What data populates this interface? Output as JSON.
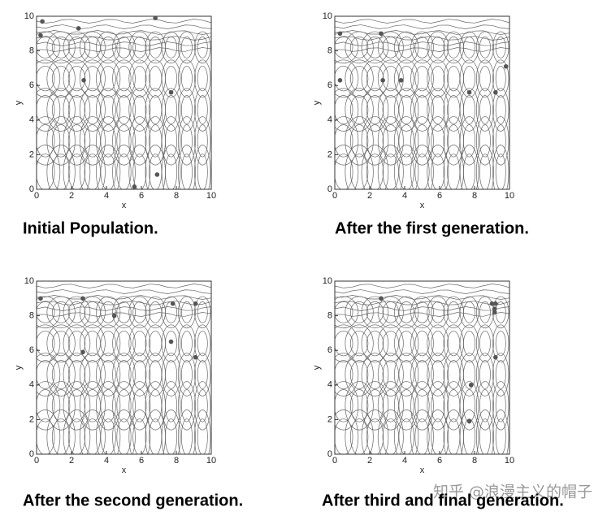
{
  "chart_data": [
    {
      "type": "scatter",
      "title": "Initial Population.",
      "x_label": "x",
      "y_label": "y",
      "x": [
        0.33,
        0.23,
        2.4,
        6.8,
        2.7,
        7.7,
        6.9,
        5.6
      ],
      "y": [
        9.7,
        8.9,
        9.3,
        9.9,
        6.3,
        5.6,
        0.85,
        0.15
      ],
      "xlim": [
        0,
        10
      ],
      "ylim": [
        0,
        10
      ],
      "xticks": [
        0,
        2,
        4,
        6,
        8,
        10
      ],
      "yticks": [
        0,
        2,
        4,
        6,
        8,
        10
      ],
      "color": "#555555"
    },
    {
      "type": "scatter",
      "title": "After the first generation.",
      "x_label": "x",
      "y_label": "y",
      "x": [
        0.3,
        2.65,
        0.3,
        2.75,
        3.8,
        7.7,
        9.2,
        9.8
      ],
      "y": [
        9.0,
        9.0,
        6.3,
        6.3,
        6.3,
        5.6,
        5.6,
        7.1
      ],
      "xlim": [
        0,
        10
      ],
      "ylim": [
        0,
        10
      ],
      "xticks": [
        0,
        2,
        4,
        6,
        8,
        10
      ],
      "yticks": [
        0,
        2,
        4,
        6,
        8,
        10
      ],
      "color": "#555555"
    },
    {
      "type": "scatter",
      "title": "After the second generation.",
      "x_label": "x",
      "y_label": "y",
      "x": [
        0.23,
        2.65,
        4.45,
        7.8,
        9.1,
        2.65,
        7.7,
        9.1
      ],
      "y": [
        9.0,
        9.0,
        8.0,
        8.7,
        8.7,
        5.9,
        6.5,
        5.6
      ],
      "xlim": [
        0,
        10
      ],
      "ylim": [
        0,
        10
      ],
      "xticks": [
        0,
        2,
        4,
        6,
        8,
        10
      ],
      "yticks": [
        0,
        2,
        4,
        6,
        8,
        10
      ],
      "color": "#555555"
    },
    {
      "type": "scatter",
      "title": "After third and final generation.",
      "x_label": "x",
      "y_label": "y",
      "x": [
        2.65,
        9.0,
        9.2,
        9.15,
        9.15,
        9.2,
        7.8,
        7.7
      ],
      "y": [
        9.0,
        8.7,
        8.7,
        8.4,
        8.2,
        5.6,
        4.0,
        1.9
      ],
      "xlim": [
        0,
        10
      ],
      "ylim": [
        0,
        10
      ],
      "xticks": [
        0,
        2,
        4,
        6,
        8,
        10
      ],
      "yticks": [
        0,
        2,
        4,
        6,
        8,
        10
      ],
      "color": "#555555"
    }
  ],
  "watermark": "知乎 @浪漫主义的帽子"
}
